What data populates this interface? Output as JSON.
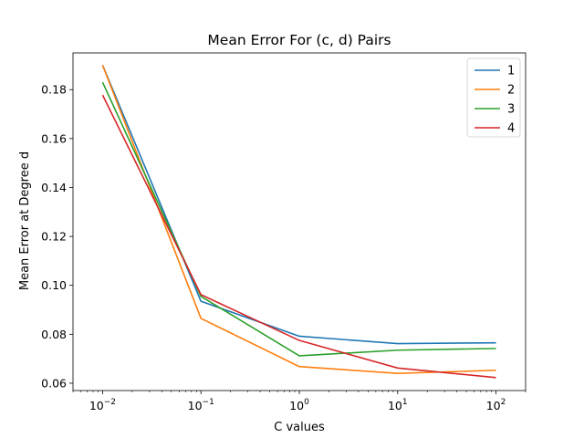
{
  "chart_data": {
    "type": "line",
    "title": "Mean Error For (c, d) Pairs",
    "xlabel": "C values",
    "ylabel": "Mean Error at Degree d",
    "xscale": "log",
    "x": [
      0.01,
      0.1,
      1,
      10,
      100
    ],
    "x_tick_labels": [
      {
        "base": "10",
        "exp": "−2"
      },
      {
        "base": "10",
        "exp": "−1"
      },
      {
        "base": "10",
        "exp": "0"
      },
      {
        "base": "10",
        "exp": "1"
      },
      {
        "base": "10",
        "exp": "2"
      }
    ],
    "ylim": [
      0.057,
      0.195
    ],
    "y_ticks": [
      0.06,
      0.08,
      0.1,
      0.12,
      0.14,
      0.16,
      0.18
    ],
    "y_tick_labels": [
      "0.06",
      "0.08",
      "0.10",
      "0.12",
      "0.14",
      "0.16",
      "0.18"
    ],
    "grid": false,
    "legend_position": "top-right",
    "series": [
      {
        "name": "1",
        "color": "#1f77b4",
        "values": [
          0.19,
          0.0935,
          0.0792,
          0.0762,
          0.0765
        ]
      },
      {
        "name": "2",
        "color": "#ff7f0e",
        "values": [
          0.19,
          0.0865,
          0.0668,
          0.064,
          0.0653
        ]
      },
      {
        "name": "3",
        "color": "#2ca02c",
        "values": [
          0.183,
          0.0955,
          0.0712,
          0.0735,
          0.0742
        ]
      },
      {
        "name": "4",
        "color": "#d62728",
        "values": [
          0.1778,
          0.0962,
          0.0775,
          0.0662,
          0.0623
        ]
      }
    ]
  }
}
